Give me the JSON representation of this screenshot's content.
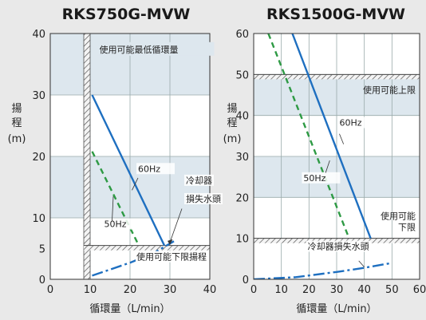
{
  "chart_data": [
    {
      "type": "line",
      "title": "RKS750G-MVW",
      "ylabel": [
        "揚",
        "程",
        "(m)"
      ],
      "xlabel": "循環量（L/min）",
      "xlim": [
        0,
        40
      ],
      "ylim": [
        0,
        40
      ],
      "xticks": [
        "0",
        "10",
        "20",
        "30",
        "40"
      ],
      "yticks": [
        {
          "value": 0,
          "label": "0"
        },
        {
          "value": 5,
          "label": "5"
        },
        {
          "value": 10,
          "label": "10"
        },
        {
          "value": 20,
          "label": "20"
        },
        {
          "value": 30,
          "label": "30"
        },
        {
          "value": 40,
          "label": "40"
        }
      ],
      "series": [
        {
          "name": "60Hz",
          "style": "solid",
          "color": "#1e6fc0",
          "points": [
            [
              10.5,
              30
            ],
            [
              28.6,
              5.5
            ]
          ]
        },
        {
          "name": "50Hz",
          "style": "dashed",
          "color": "#2e9a44",
          "points": [
            [
              10.5,
              20.8
            ],
            [
              22.2,
              5.5
            ]
          ]
        },
        {
          "name": "冷却器損失水頭",
          "style": "dashdot",
          "color": "#1e6fc0",
          "points": [
            [
              10.5,
              0.6
            ],
            [
              20,
              2.7
            ],
            [
              26,
              4.3
            ],
            [
              31,
              6.2
            ]
          ]
        }
      ],
      "shaded_bands": [
        [
          10,
          20
        ],
        [
          30,
          40
        ]
      ],
      "limits": {
        "min_flow": 10,
        "min_flow_label": "使用可能最低循環量",
        "min_head": 5.5,
        "min_head_label": "使用可能下限揚程"
      },
      "annotations": [
        {
          "text": "60Hz",
          "x": 22,
          "y": 17.5
        },
        {
          "text": "50Hz",
          "x": 13.5,
          "y": 8.5
        },
        {
          "text": "冷却器",
          "x": 34,
          "y": 15.6
        },
        {
          "text": "損失水頭",
          "x": 34,
          "y": 12.6
        }
      ]
    },
    {
      "type": "line",
      "title": "RKS1500G-MVW",
      "ylabel": [
        "揚",
        "程",
        "(m)"
      ],
      "xlabel": "循環量（L/min）",
      "xlim": [
        0,
        60
      ],
      "ylim": [
        0,
        60
      ],
      "xticks": [
        "0",
        "10",
        "20",
        "30",
        "40",
        "50",
        "60"
      ],
      "yticks": [
        {
          "value": 0,
          "label": "0"
        },
        {
          "value": 10,
          "label": "10"
        },
        {
          "value": 20,
          "label": "20"
        },
        {
          "value": 30,
          "label": "30"
        },
        {
          "value": 40,
          "label": "40"
        },
        {
          "value": 50,
          "label": "50"
        },
        {
          "value": 60,
          "label": "60"
        }
      ],
      "series": [
        {
          "name": "60Hz",
          "style": "solid",
          "color": "#1e6fc0",
          "points": [
            [
              14,
              60
            ],
            [
              42.3,
              10
            ]
          ]
        },
        {
          "name": "50Hz",
          "style": "dashed",
          "color": "#2e9a44",
          "points": [
            [
              5.3,
              60
            ],
            [
              34.5,
              10
            ]
          ]
        },
        {
          "name": "冷却器損失水頭",
          "style": "dashdot",
          "color": "#1e6fc0",
          "points": [
            [
              0,
              0
            ],
            [
              15,
              0.5
            ],
            [
              30,
              1.8
            ],
            [
              40,
              2.8
            ],
            [
              50,
              4
            ]
          ]
        }
      ],
      "shaded_bands": [
        [
          20,
          30
        ],
        [
          40,
          50
        ]
      ],
      "limits": {
        "max_head": 50,
        "max_head_label": "使用可能上限",
        "min_head": 10,
        "min_head_label": [
          "使用可能",
          "下限"
        ]
      },
      "annotations": [
        {
          "text": "60Hz",
          "x": 31,
          "y": 37.5
        },
        {
          "text": "50Hz",
          "x": 18,
          "y": 24
        },
        {
          "text": "冷却器損失水頭",
          "x": 19.5,
          "y": 7.3
        }
      ]
    }
  ]
}
